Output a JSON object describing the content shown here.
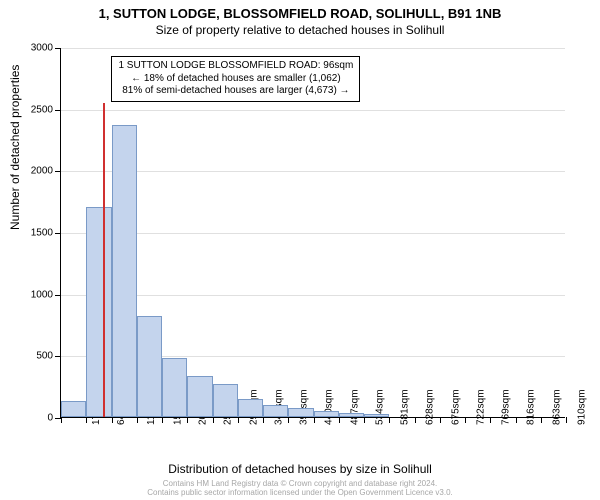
{
  "title": "1, SUTTON LODGE, BLOSSOMFIELD ROAD, SOLIHULL, B91 1NB",
  "subtitle": "Size of property relative to detached houses in Solihull",
  "ylabel": "Number of detached properties",
  "xlabel": "Distribution of detached houses by size in Solihull",
  "chart": {
    "type": "histogram",
    "ylim": [
      0,
      3000
    ],
    "ytick_step": 500,
    "x_start": 17,
    "x_step": 47,
    "x_tick_count": 21,
    "x_unit": "sqm",
    "bar_color": "#c4d4ed",
    "bar_border_color": "#7a9ac7",
    "grid_color": "#e0e0e0",
    "background_color": "#ffffff",
    "marker_value_x": 96,
    "marker_color": "#d03030",
    "bars": [
      130,
      1700,
      2370,
      820,
      480,
      330,
      270,
      150,
      100,
      70,
      50,
      30,
      25,
      0,
      0,
      0,
      0,
      0,
      0,
      0
    ]
  },
  "annotation": {
    "line1": "1 SUTTON LODGE BLOSSOMFIELD ROAD: 96sqm",
    "line2": "← 18% of detached houses are smaller (1,062)",
    "line3": "81% of semi-detached houses are larger (4,673) →"
  },
  "footer": {
    "line1": "Contains HM Land Registry data © Crown copyright and database right 2024.",
    "line2": "Contains public sector information licensed under the Open Government Licence v3.0."
  },
  "fonts": {
    "title": 13,
    "subtitle": 12,
    "axis_label": 12,
    "tick": 10,
    "annotation": 10,
    "footer": 8
  }
}
